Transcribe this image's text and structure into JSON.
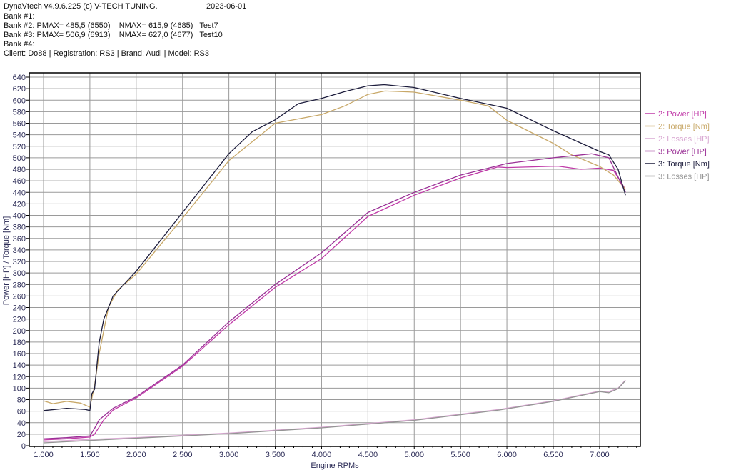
{
  "header": {
    "app_title": "DynaVtech v4.9.6.225 (c) V-TECH TUNING.",
    "date": "2023-06-01",
    "bank1": "Bank #1:",
    "bank2": "Bank #2: PMAX= 485,5 (6550)    NMAX= 615,9 (4685)   Test7",
    "bank3": "Bank #3: PMAX= 506,9 (6913)    NMAX= 627,0 (4677)   Test10",
    "bank4": "Bank #4:",
    "client": "Client: Do88 | Registration: RS3 | Brand: Audi | Model: RS3"
  },
  "chart_data": {
    "type": "line",
    "title": "",
    "xlabel": "Engine RPMs",
    "ylabel": "Power [HP] / Torque [Nm]",
    "xlim": [
      846,
      7440
    ],
    "ylim": [
      0,
      640
    ],
    "xticks": [
      1000,
      1500,
      2000,
      2500,
      3000,
      3500,
      4000,
      4500,
      5000,
      5500,
      6000,
      6500,
      7000
    ],
    "xtick_labels": [
      "1.000",
      "1.500",
      "2.000",
      "2.500",
      "3.000",
      "3.500",
      "4.000",
      "4.500",
      "5.000",
      "5.500",
      "6.000",
      "6.500",
      "7.000"
    ],
    "yticks": [
      0,
      20,
      40,
      60,
      80,
      100,
      120,
      140,
      160,
      180,
      200,
      220,
      240,
      260,
      280,
      300,
      320,
      340,
      360,
      380,
      400,
      420,
      440,
      460,
      480,
      500,
      520,
      540,
      560,
      580,
      600,
      620,
      640
    ],
    "grid": true,
    "legend_position": "right",
    "series": [
      {
        "name": "2: Power [HP]",
        "color": "#c03aa8",
        "x": [
          1000,
          1250,
          1500,
          1550,
          1650,
          1750,
          2000,
          2500,
          3000,
          3500,
          4000,
          4500,
          5000,
          5500,
          5900,
          6000,
          6550,
          6800,
          7000,
          7150,
          7280
        ],
        "y": [
          10,
          12,
          15,
          20,
          45,
          62,
          83,
          138,
          210,
          275,
          325,
          398,
          435,
          465,
          484,
          483,
          485.5,
          480,
          482,
          478,
          445
        ]
      },
      {
        "name": "2: Torque [Nm]",
        "color": "#c8a868",
        "x": [
          1000,
          1100,
          1250,
          1400,
          1500,
          1550,
          1600,
          1700,
          1800,
          2000,
          2500,
          3000,
          3500,
          4000,
          4250,
          4500,
          4685,
          5000,
          5500,
          5800,
          6000,
          6500,
          6700,
          7000,
          7150,
          7280
        ],
        "y": [
          78,
          73,
          77,
          74,
          67,
          104,
          160,
          240,
          270,
          298,
          395,
          495,
          560,
          575,
          590,
          610,
          615.9,
          614,
          600,
          590,
          565,
          525,
          505,
          485,
          470,
          445
        ]
      },
      {
        "name": "2: Losses [HP]",
        "color": "#d9a8d2",
        "x": [
          1000,
          1500,
          2000,
          3000,
          4000,
          5000,
          5920,
          6500,
          7000,
          7100,
          7200,
          7280
        ],
        "y": [
          7,
          11,
          14,
          22,
          32,
          45,
          63,
          78,
          95,
          94,
          100,
          114
        ]
      },
      {
        "name": "3: Power [HP]",
        "color": "#9a3096",
        "x": [
          1000,
          1250,
          1500,
          1550,
          1600,
          1750,
          2000,
          2500,
          3000,
          3500,
          4000,
          4500,
          5000,
          5500,
          6000,
          6500,
          6913,
          7100,
          7280
        ],
        "y": [
          12,
          14,
          17,
          30,
          45,
          65,
          85,
          140,
          215,
          280,
          335,
          405,
          440,
          470,
          490,
          500,
          506.9,
          500,
          440
        ]
      },
      {
        "name": "3: Torque [Nm]",
        "color": "#1c1c3c",
        "x": [
          1000,
          1250,
          1450,
          1500,
          1520,
          1550,
          1600,
          1650,
          1750,
          2000,
          2500,
          3000,
          3250,
          3500,
          3750,
          4000,
          4250,
          4500,
          4677,
          5000,
          5500,
          6000,
          6500,
          7000,
          7100,
          7200,
          7280
        ],
        "y": [
          61,
          65,
          63,
          61,
          90,
          98,
          179,
          220,
          260,
          303,
          405,
          507,
          545,
          566,
          594,
          603,
          615,
          625,
          627,
          622,
          603,
          586,
          547,
          511,
          505,
          480,
          435
        ]
      },
      {
        "name": "3: Losses [HP]",
        "color": "#959595",
        "x": [
          1000,
          1500,
          2000,
          3000,
          4000,
          5000,
          5920,
          6500,
          7000,
          7100,
          7200,
          7280
        ],
        "y": [
          5,
          9,
          13,
          21,
          31,
          44,
          62,
          77,
          94,
          92,
          99,
          113
        ]
      }
    ]
  }
}
